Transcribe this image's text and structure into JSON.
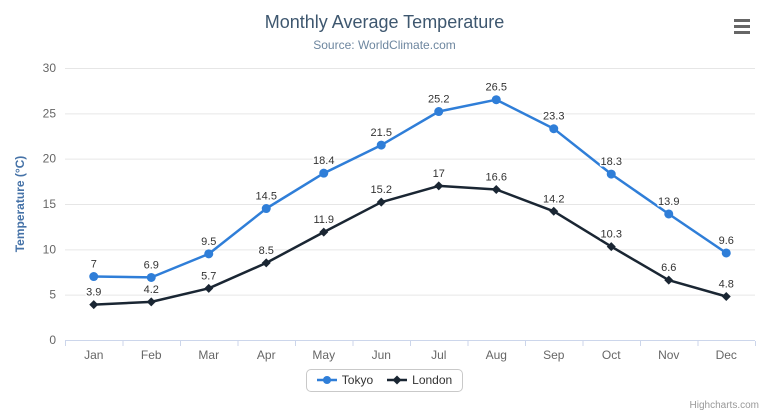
{
  "header": {
    "title": "Monthly Average Temperature",
    "subtitle": "Source: WorldClimate.com"
  },
  "chart_data": {
    "type": "line",
    "title": "Monthly Average Temperature",
    "subtitle": "Source: WorldClimate.com",
    "categories": [
      "Jan",
      "Feb",
      "Mar",
      "Apr",
      "May",
      "Jun",
      "Jul",
      "Aug",
      "Sep",
      "Oct",
      "Nov",
      "Dec"
    ],
    "series": [
      {
        "name": "Tokyo",
        "color": "#2f7ed8",
        "marker": "circle",
        "values": [
          7,
          6.9,
          9.5,
          14.5,
          18.4,
          21.5,
          25.2,
          26.5,
          23.3,
          18.3,
          13.9,
          9.6
        ]
      },
      {
        "name": "London",
        "color": "#1a2633",
        "marker": "diamond",
        "values": [
          3.9,
          4.2,
          5.7,
          8.5,
          11.9,
          15.2,
          17,
          16.6,
          14.2,
          10.3,
          6.6,
          4.8
        ]
      }
    ],
    "xlabel": "",
    "ylabel": "Temperature (°C)",
    "ylim": [
      0,
      30
    ],
    "ytick_step": 5,
    "yticks": [
      0,
      5,
      10,
      15,
      20,
      25,
      30
    ],
    "grid": true,
    "data_labels": true,
    "legend_position": "bottom"
  },
  "styles": {
    "grid_color": "#e6e6e6",
    "axis_line_color": "#ccd6eb",
    "axis_label_color": "#666666",
    "yaxis_title_color": "#4572a7",
    "data_label_color": "#333333",
    "menu_icon_color": "#666666"
  },
  "credits": {
    "label": "Highcharts.com"
  }
}
